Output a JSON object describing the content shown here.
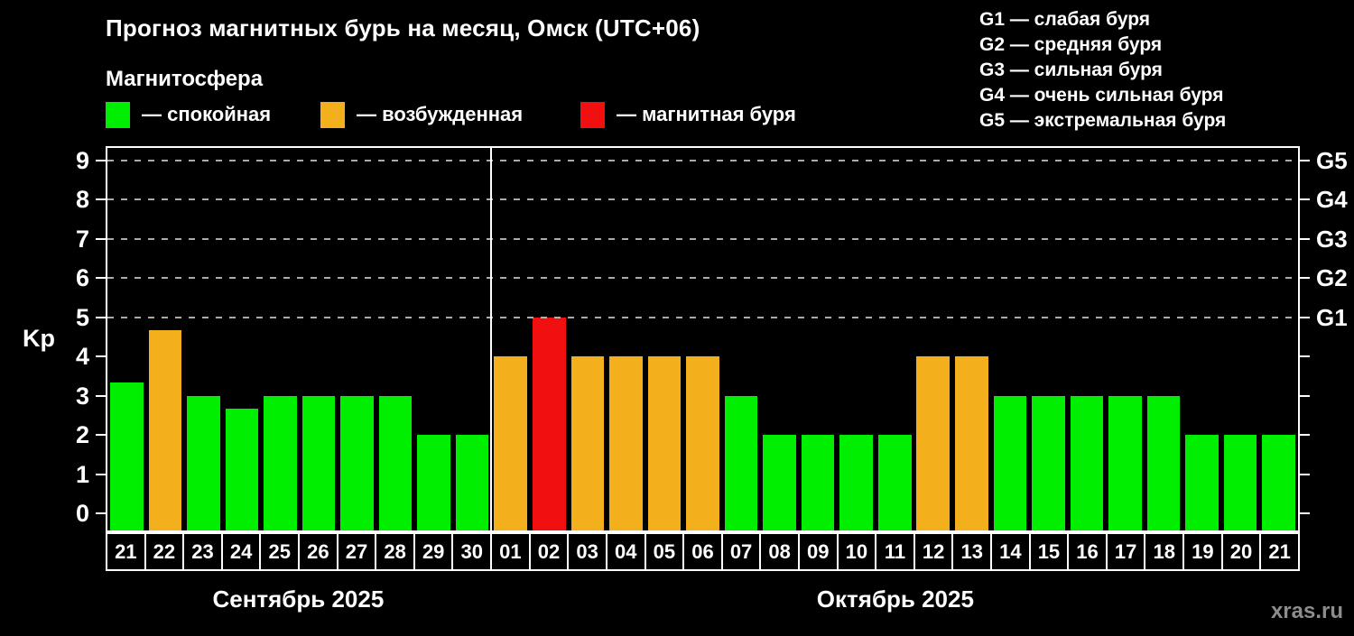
{
  "title": "Прогноз магнитных бурь на месяц, Омск (UTC+06)",
  "magnetosphere": {
    "heading": "Магнитосфера",
    "legend": [
      {
        "key": "quiet",
        "label": "— спокойная",
        "color": "#00ee00"
      },
      {
        "key": "excited",
        "label": "— возбужденная",
        "color": "#f4b01c"
      },
      {
        "key": "storm",
        "label": "— магнитная буря",
        "color": "#f10f0f"
      }
    ]
  },
  "storm_scale_legend": [
    "G1 — слабая буря",
    "G2 — средняя буря",
    "G3 — сильная буря",
    "G4 — очень сильная буря",
    "G5 — экстремальная буря"
  ],
  "watermark": "xras.ru",
  "chart_data": {
    "type": "bar",
    "title": "Прогноз магнитных бурь на месяц, Омск (UTC+06)",
    "ylabel": "Kp",
    "ylim": [
      0,
      9
    ],
    "yticks": [
      0,
      1,
      2,
      3,
      4,
      5,
      6,
      7,
      8,
      9
    ],
    "grid_levels": [
      5,
      6,
      7,
      8,
      9
    ],
    "grid_style": "dashed",
    "right_axis_labels": {
      "5": "G1",
      "6": "G2",
      "7": "G3",
      "8": "G4",
      "9": "G5"
    },
    "legend_position": "top-left",
    "categories": [
      "21",
      "22",
      "23",
      "24",
      "25",
      "26",
      "27",
      "28",
      "29",
      "30",
      "01",
      "02",
      "03",
      "04",
      "05",
      "06",
      "07",
      "08",
      "09",
      "10",
      "11",
      "12",
      "13",
      "14",
      "15",
      "16",
      "17",
      "18",
      "19",
      "20",
      "21"
    ],
    "values": [
      3.33,
      4.67,
      3,
      2.67,
      3,
      3,
      3,
      3,
      2,
      2,
      4,
      5,
      4,
      4,
      4,
      4,
      3,
      2,
      2,
      2,
      2,
      4,
      4,
      3,
      3,
      3,
      3,
      3,
      2,
      2,
      2
    ],
    "statuses": [
      "quiet",
      "excited",
      "quiet",
      "quiet",
      "quiet",
      "quiet",
      "quiet",
      "quiet",
      "quiet",
      "quiet",
      "excited",
      "storm",
      "excited",
      "excited",
      "excited",
      "excited",
      "quiet",
      "quiet",
      "quiet",
      "quiet",
      "quiet",
      "excited",
      "excited",
      "quiet",
      "quiet",
      "quiet",
      "quiet",
      "quiet",
      "quiet",
      "quiet",
      "quiet"
    ],
    "colors": {
      "quiet": "#00ee00",
      "excited": "#f4b01c",
      "storm": "#f10f0f"
    },
    "months": [
      {
        "label": "Сентябрь 2025",
        "days_count": 10
      },
      {
        "label": "Октябрь 2025",
        "days_count": 21
      }
    ],
    "month_separator_after_index": 9
  }
}
